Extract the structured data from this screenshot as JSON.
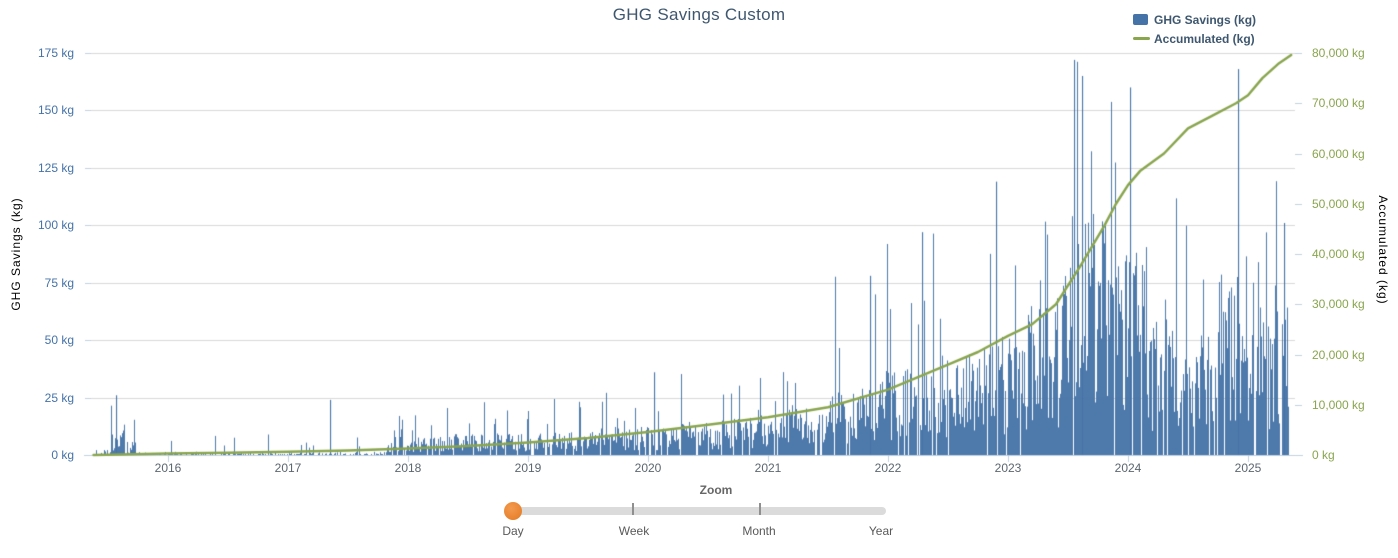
{
  "title": "GHG Savings Custom",
  "legend": [
    {
      "label": "GHG Savings (kg)",
      "symbol": "bar",
      "color": "#4572A7"
    },
    {
      "label": "Accumulated (kg)",
      "symbol": "line",
      "color": "#89A54E"
    }
  ],
  "axes": {
    "left": {
      "title": "GHG Savings (kg)",
      "color": "#4572A7",
      "unit": "kg",
      "ticks": [
        "0 kg",
        "25 kg",
        "50 kg",
        "75 kg",
        "100 kg",
        "125 kg",
        "150 kg",
        "175 kg"
      ]
    },
    "right": {
      "title": "Accumulated (kg)",
      "color": "#89A54E",
      "unit": "kg",
      "ticks": [
        "0 kg",
        "10,000 kg",
        "20,000 kg",
        "30,000 kg",
        "40,000 kg",
        "50,000 kg",
        "60,000 kg",
        "70,000 kg",
        "80,000 kg"
      ]
    },
    "x": {
      "color": "#5B6670",
      "ticks": [
        "2016",
        "2017",
        "2018",
        "2019",
        "2020",
        "2021",
        "2022",
        "2023",
        "2024",
        "2025"
      ]
    }
  },
  "zoom_control": {
    "label": "Zoom",
    "options": [
      "Day",
      "Week",
      "Month",
      "Year"
    ],
    "selected": "Day",
    "handle_color": "#E8822F",
    "track_color": "#DBDBDB"
  },
  "colors": {
    "bar": "#4572A7",
    "line": "#89A54E",
    "title_text": "#3E576F",
    "grid": "#D8D8D8",
    "axis_line": "#C0D0E0",
    "x_labels": "#5B6670"
  },
  "chart_data": {
    "type": "combo",
    "title": "GHG Savings Custom",
    "grid": "horizontal",
    "legend_position": "top-right",
    "x_unit": "date (daily resolution)",
    "x_range_decimal_years": [
      2015.38,
      2025.37
    ],
    "x_tick_years": [
      2016,
      2017,
      2018,
      2019,
      2020,
      2021,
      2022,
      2023,
      2024,
      2025
    ],
    "ylabel_left": "GHG Savings (kg)",
    "ylim_left": [
      0,
      175
    ],
    "ylabel_right": "Accumulated (kg)",
    "ylim_right": [
      0,
      80000
    ],
    "series": [
      {
        "name": "GHG Savings (kg)",
        "type": "bar",
        "axis": "left",
        "color": "#4572A7",
        "resolution": "daily",
        "envelope_fields": [
          "from_year",
          "to_year",
          "typical_kg",
          "peak_kg",
          "gap_probability"
        ],
        "envelope": [
          [
            2015.4,
            2015.52,
            1.5,
            5,
            0.6
          ],
          [
            2015.52,
            2015.63,
            8,
            26,
            0.15
          ],
          [
            2015.63,
            2015.73,
            4,
            16,
            0.35
          ],
          [
            2015.73,
            2016.05,
            1,
            9,
            0.62
          ],
          [
            2016.05,
            2016.55,
            1,
            11,
            0.62
          ],
          [
            2016.55,
            2017.05,
            0.8,
            9,
            0.68
          ],
          [
            2017.05,
            2017.3,
            0.8,
            6,
            0.62
          ],
          [
            2017.3,
            2017.4,
            2,
            24,
            0.5
          ],
          [
            2017.4,
            2017.82,
            1,
            10,
            0.62
          ],
          [
            2017.82,
            2018.3,
            5.5,
            18,
            0.12
          ],
          [
            2018.3,
            2019.0,
            6.5,
            23,
            0.15
          ],
          [
            2019.0,
            2019.6,
            7,
            25,
            0.2
          ],
          [
            2019.6,
            2020.1,
            8.5,
            28,
            0.15
          ],
          [
            2020.1,
            2020.6,
            10,
            36,
            0.15
          ],
          [
            2020.6,
            2021.1,
            12,
            34,
            0.15
          ],
          [
            2021.1,
            2021.5,
            15,
            45,
            0.12
          ],
          [
            2021.5,
            2021.9,
            20,
            78,
            0.12
          ],
          [
            2021.9,
            2022.35,
            26,
            97,
            0.12
          ],
          [
            2022.35,
            2022.75,
            31,
            100,
            0.1
          ],
          [
            2022.75,
            2023.15,
            36,
            119,
            0.1
          ],
          [
            2023.15,
            2023.45,
            48,
            112,
            0.08
          ],
          [
            2023.45,
            2023.8,
            75,
            172,
            0.06
          ],
          [
            2023.8,
            2024.15,
            65,
            160,
            0.07
          ],
          [
            2024.15,
            2024.5,
            42,
            115,
            0.1
          ],
          [
            2024.5,
            2024.75,
            38,
            100,
            0.12
          ],
          [
            2024.75,
            2025.05,
            60,
            168,
            0.07
          ],
          [
            2025.05,
            2025.37,
            45,
            125,
            0.1
          ]
        ],
        "landmark_bars": [
          [
            2015.57,
            26
          ],
          [
            2017.35,
            24
          ],
          [
            2020.05,
            36
          ],
          [
            2021.85,
            78
          ],
          [
            2022.28,
            97
          ],
          [
            2022.9,
            119
          ],
          [
            2023.55,
            172
          ],
          [
            2023.62,
            165
          ],
          [
            2024.02,
            160
          ],
          [
            2024.92,
            168
          ],
          [
            2025.3,
            101
          ]
        ],
        "max_value_kg": 172,
        "max_value_year": 2023.55
      },
      {
        "name": "Accumulated (kg)",
        "type": "line",
        "axis": "right",
        "color": "#89A54E",
        "points": [
          [
            2015.38,
            0
          ],
          [
            2015.6,
            120
          ],
          [
            2016.0,
            300
          ],
          [
            2016.5,
            450
          ],
          [
            2017.0,
            650
          ],
          [
            2017.5,
            900
          ],
          [
            2018.0,
            1300
          ],
          [
            2018.5,
            1800
          ],
          [
            2019.0,
            2500
          ],
          [
            2019.5,
            3400
          ],
          [
            2020.0,
            4600
          ],
          [
            2020.5,
            6000
          ],
          [
            2021.0,
            7500
          ],
          [
            2021.5,
            9500
          ],
          [
            2022.0,
            13000
          ],
          [
            2022.5,
            18000
          ],
          [
            2022.75,
            20500
          ],
          [
            2023.0,
            23700
          ],
          [
            2023.2,
            26000
          ],
          [
            2023.4,
            30000
          ],
          [
            2023.6,
            37500
          ],
          [
            2023.8,
            45500
          ],
          [
            2023.9,
            50000
          ],
          [
            2024.0,
            53700
          ],
          [
            2024.1,
            56500
          ],
          [
            2024.3,
            60000
          ],
          [
            2024.5,
            65000
          ],
          [
            2024.7,
            67500
          ],
          [
            2024.9,
            70000
          ],
          [
            2025.0,
            71600
          ],
          [
            2025.12,
            75000
          ],
          [
            2025.25,
            77800
          ],
          [
            2025.36,
            79600
          ]
        ]
      }
    ]
  }
}
